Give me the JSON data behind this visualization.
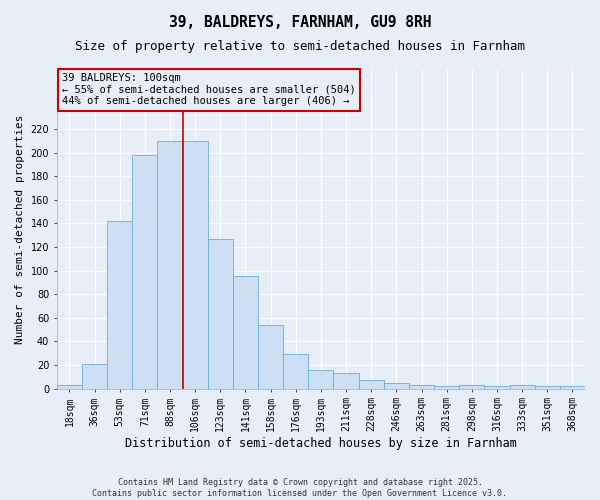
{
  "title": "39, BALDREYS, FARNHAM, GU9 8RH",
  "subtitle": "Size of property relative to semi-detached houses in Farnham",
  "xlabel": "Distribution of semi-detached houses by size in Farnham",
  "ylabel": "Number of semi-detached properties",
  "categories": [
    "18sqm",
    "36sqm",
    "53sqm",
    "71sqm",
    "88sqm",
    "106sqm",
    "123sqm",
    "141sqm",
    "158sqm",
    "176sqm",
    "193sqm",
    "211sqm",
    "228sqm",
    "246sqm",
    "263sqm",
    "281sqm",
    "298sqm",
    "316sqm",
    "333sqm",
    "351sqm",
    "368sqm"
  ],
  "bar_values": [
    3,
    21,
    142,
    198,
    210,
    210,
    127,
    95,
    54,
    29,
    16,
    13,
    7,
    5,
    3,
    2,
    3,
    2,
    3,
    2,
    2
  ],
  "bar_color": "#ccdff5",
  "bar_edge_color": "#6aaed6",
  "vline_color": "#cc0000",
  "vline_x": 4.5,
  "annotation_line1": "39 BALDREYS: 100sqm",
  "annotation_line2": "← 55% of semi-detached houses are smaller (504)",
  "annotation_line3": "44% of semi-detached houses are larger (406) →",
  "box_edge_color": "#cc0000",
  "footer_line1": "Contains HM Land Registry data © Crown copyright and database right 2025.",
  "footer_line2": "Contains public sector information licensed under the Open Government Licence v3.0.",
  "ylim": [
    0,
    270
  ],
  "yticks": [
    0,
    20,
    40,
    60,
    80,
    100,
    120,
    140,
    160,
    180,
    200,
    220
  ],
  "bg_color": "#e8eef8",
  "grid_color": "#ffffff",
  "title_fontsize": 10.5,
  "subtitle_fontsize": 9,
  "tick_fontsize": 7,
  "ylabel_fontsize": 8,
  "xlabel_fontsize": 8.5,
  "annot_fontsize": 7.5,
  "footer_fontsize": 6
}
